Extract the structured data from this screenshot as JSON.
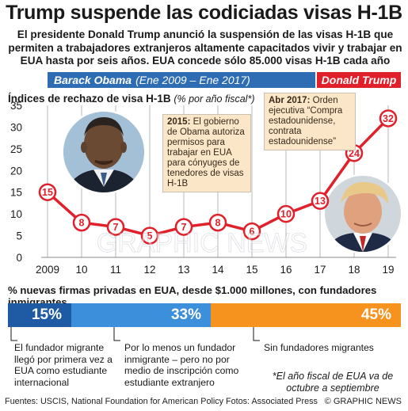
{
  "title": "Trump suspende las codiciadas visas H-1B",
  "subtitle": "El presidente Donald Trump anunció la suspensión de las visas H-1B que permiten a trabajadores extranjeros altamente capacitados vivir y trabajar en EUA hasta por seis años. EUA concede sólo 85.000 visas H-1B cada año",
  "periods": {
    "obama_name": "Barack Obama",
    "obama_dates": "(Ene 2009 – Ene 2017)",
    "trump_name": "Donald Trump"
  },
  "colors": {
    "obama": "#2e6db4",
    "trump": "#e0202a",
    "line": "#e0202a",
    "annotation": "#fbe6c8"
  },
  "chart_data": {
    "type": "line",
    "ylabel": "Índices de rechazo de visa H-1B",
    "ylabel_unit": "(% por año fiscal*)",
    "x": [
      2009,
      2010,
      2011,
      2012,
      2013,
      2014,
      2015,
      2016,
      2017,
      2018,
      2019
    ],
    "xtick_labels": [
      "2009",
      "10",
      "11",
      "12",
      "13",
      "14",
      "15",
      "16",
      "17",
      "18",
      "19"
    ],
    "values": [
      15,
      8,
      7,
      5,
      7,
      8,
      6,
      10,
      13,
      24,
      32
    ],
    "yticks": [
      0,
      5,
      10,
      15,
      20,
      25,
      30,
      35
    ],
    "ylim": [
      0,
      35
    ],
    "grid": "vertical",
    "annotations": [
      {
        "year": "2015:",
        "text": "El gobierno de Obama autoriza permisos para trabajar en EUA para cónyuges de tenedores de visas H-1B"
      },
      {
        "year": "Abr 2017:",
        "text": "Orden ejecutiva “Compra estadounidense, contrata estadounidense”"
      }
    ]
  },
  "firms": {
    "label": "% nuevas firmas privadas en EUA, desde  $1.000 millones, con fundadores inmigrantes",
    "segments": [
      {
        "value": 15,
        "label": "15%",
        "desc": "El fundador migrante llegó por primera vez a EUA como estudiante internacional"
      },
      {
        "value": 33,
        "label": "33%",
        "desc": "Por lo menos un fundador inmigrante  – pero no por medio de inscripción como estudiante extranjero"
      },
      {
        "value": 45,
        "label": "45%",
        "desc": "Sin fundadores migrantes"
      }
    ]
  },
  "footnote": "*El año fiscal de EUA va de octubre a septiembre",
  "sources": "Fuentes: USCIS, National Foundation for American Policy  Fotos: Associated Press",
  "copyright": "© GRAPHIC NEWS",
  "watermark": "GRAPHIC NEWS"
}
